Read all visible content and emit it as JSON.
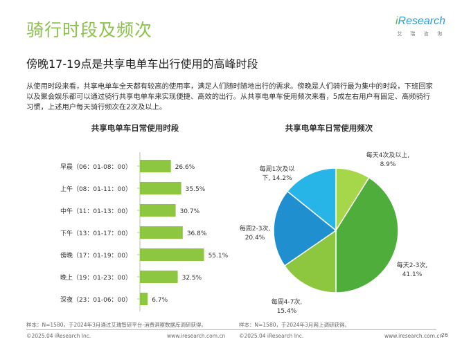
{
  "header": {
    "title": "骑行时段及频次",
    "logo_brand_i": "i",
    "logo_brand_rest": "Research",
    "logo_sub": "艾 瑞 咨 询"
  },
  "subtitle": "傍晚17-19点是共享电单车出行使用的高峰时段",
  "description": "从使用时段来看，共享电单车全天都有较高的使用率，满足人们随时随地出行的需求。傍晚是人们骑行最为集中的时段，下班回家以及聚会娱乐都可以通过骑行共享电单车来实现便捷、高效的出行。从共享电单车使用频次来看，5成左右用户有固定、高频骑行习惯，上述用户每天骑行频次在2次及以上。",
  "chart_data": [
    {
      "type": "bar",
      "orientation": "horizontal",
      "title": "共享电单车日常使用时段",
      "categories": [
        "早晨（06：01-08：00）",
        "上午（08：01-11：00）",
        "中午（11：01-13：00）",
        "下午（13：01-17：00）",
        "傍晚（17：01-19：00）",
        "晚上（19：01-23：00）",
        "深夜（23：01-06：00）"
      ],
      "values": [
        26.6,
        35.5,
        30.7,
        36.8,
        55.1,
        32.5,
        6.7
      ],
      "value_labels": [
        "26.6%",
        "35.5%",
        "30.7%",
        "36.8%",
        "55.1%",
        "32.5%",
        "6.7%"
      ],
      "unit": "%",
      "xlim": [
        0,
        100
      ],
      "color": "#8dc63f",
      "grid": false
    },
    {
      "type": "pie",
      "title": "共享电单车日常使用频次",
      "slices": [
        {
          "label_line1": "每天4次及以上,",
          "label_line2": "8.9%",
          "value": 8.9,
          "color": "#a6d64a"
        },
        {
          "label_line1": "每天2-3次,",
          "label_line2": "41.1%",
          "value": 41.1,
          "color": "#4fad3b"
        },
        {
          "label_line1": "每周4-7次,",
          "label_line2": "15.4%",
          "value": 15.4,
          "color": "#8dc63f"
        },
        {
          "label_line1": "每周2-3次,",
          "label_line2": "20.4%",
          "value": 20.4,
          "color": "#1f8fd0"
        },
        {
          "label_line1": "每周1次及以",
          "label_line2": "下, 14.2%",
          "value": 14.2,
          "color": "#27b4e6"
        }
      ]
    }
  ],
  "footnotes": {
    "left": "样本：N=1580，于2024年3月通过艾瑞智研平台-消费洞察数据库调研获得。",
    "right": "样本：N=1580，于2024年3月网上调研获得。"
  },
  "footer": {
    "copyright_left": "©2025.04 iResearch Inc.",
    "url_left": "www.iresearch.com.cn",
    "copyright_right": "©2025.04 iResearch Inc.",
    "url_right": "www.iresearch.com.cn",
    "page_number": "26"
  }
}
